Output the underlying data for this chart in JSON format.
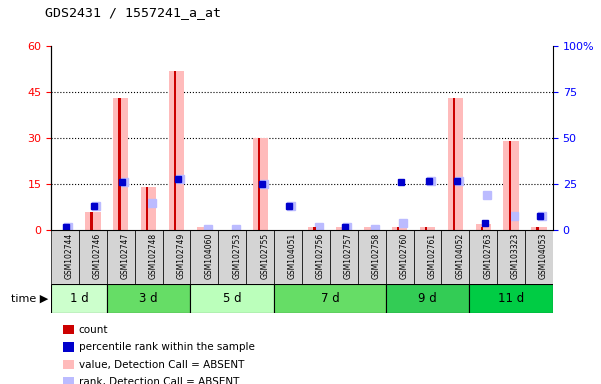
{
  "title": "GDS2431 / 1557241_a_at",
  "samples": [
    "GSM102744",
    "GSM102746",
    "GSM102747",
    "GSM102748",
    "GSM102749",
    "GSM104060",
    "GSM102753",
    "GSM102755",
    "GSM104051",
    "GSM102756",
    "GSM102757",
    "GSM102758",
    "GSM102760",
    "GSM102761",
    "GSM104052",
    "GSM102763",
    "GSM103323",
    "GSM104053"
  ],
  "time_groups": [
    {
      "label": "1 d",
      "start": 0,
      "end": 2,
      "color": "#ccffcc"
    },
    {
      "label": "3 d",
      "start": 2,
      "end": 5,
      "color": "#66dd66"
    },
    {
      "label": "5 d",
      "start": 5,
      "end": 8,
      "color": "#bbffbb"
    },
    {
      "label": "7 d",
      "start": 8,
      "end": 12,
      "color": "#66dd66"
    },
    {
      "label": "9 d",
      "start": 12,
      "end": 15,
      "color": "#33cc55"
    },
    {
      "label": "11 d",
      "start": 15,
      "end": 18,
      "color": "#00cc44"
    }
  ],
  "count_values": [
    1,
    6,
    43,
    14,
    52,
    0,
    0,
    30,
    0,
    1,
    0,
    0,
    1,
    1,
    43,
    1,
    29,
    1
  ],
  "percentile_values": [
    2,
    13,
    26,
    0,
    28,
    0,
    0,
    25,
    13,
    0,
    2,
    0,
    26,
    27,
    27,
    4,
    0,
    8
  ],
  "absent_value_values": [
    0,
    6,
    43,
    14,
    52,
    1,
    0,
    30,
    0,
    1,
    1,
    1,
    1,
    1,
    43,
    2,
    29,
    1
  ],
  "absent_rank_values": [
    2,
    13,
    26,
    15,
    28,
    1,
    1,
    25,
    13,
    2,
    2,
    1,
    4,
    27,
    27,
    19,
    8,
    8
  ],
  "left_ylim": [
    0,
    60
  ],
  "right_ylim": [
    0,
    100
  ],
  "left_yticks": [
    0,
    15,
    30,
    45,
    60
  ],
  "right_yticks": [
    0,
    25,
    50,
    75,
    100
  ],
  "right_yticklabels": [
    "0",
    "25",
    "50",
    "75",
    "100%"
  ],
  "color_count": "#cc0000",
  "color_percentile": "#0000cc",
  "color_absent_value": "#ffbbbb",
  "color_absent_rank": "#bbbbff",
  "absent_bar_width": 0.55,
  "count_bar_width": 0.08,
  "rank_marker_size": 6
}
